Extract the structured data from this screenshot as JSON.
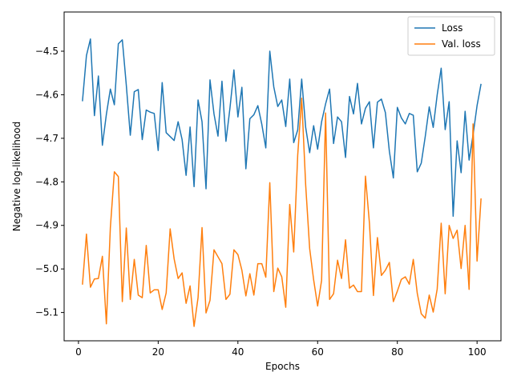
{
  "chart_data": {
    "type": "line",
    "title": "",
    "xlabel": "Epochs",
    "ylabel": "Negative log-likelihood",
    "xlim": [
      -3.6,
      106
    ],
    "ylim": [
      -5.165,
      -4.41
    ],
    "xticks": [
      0,
      20,
      40,
      60,
      80,
      100
    ],
    "yticks": [
      -5.1,
      -5.0,
      -4.9,
      -4.8,
      -4.7,
      -4.6,
      -4.5
    ],
    "xtick_labels": [
      "0",
      "20",
      "40",
      "60",
      "80",
      "100"
    ],
    "ytick_labels": [
      "−5.1",
      "−5.0",
      "−4.9",
      "−4.8",
      "−4.7",
      "−4.6",
      "−4.5"
    ],
    "grid": false,
    "legend_position": "top-right",
    "x": [
      1,
      2,
      3,
      4,
      5,
      6,
      7,
      8,
      9,
      10,
      11,
      12,
      13,
      14,
      15,
      16,
      17,
      18,
      19,
      20,
      21,
      22,
      23,
      24,
      25,
      26,
      27,
      28,
      29,
      30,
      31,
      32,
      33,
      34,
      35,
      36,
      37,
      38,
      39,
      40,
      41,
      42,
      43,
      44,
      45,
      46,
      47,
      48,
      49,
      50,
      51,
      52,
      53,
      54,
      55,
      56,
      57,
      58,
      59,
      60,
      61,
      62,
      63,
      64,
      65,
      66,
      67,
      68,
      69,
      70,
      71,
      72,
      73,
      74,
      75,
      76,
      77,
      78,
      79,
      80,
      81,
      82,
      83,
      84,
      85,
      86,
      87,
      88,
      89,
      90,
      91,
      92,
      93,
      94,
      95,
      96,
      97,
      98,
      99,
      100,
      101
    ],
    "series": [
      {
        "name": "Loss",
        "color": "#1f77b4",
        "values": [
          -4.615,
          -4.51,
          -4.472,
          -4.648,
          -4.557,
          -4.716,
          -4.645,
          -4.587,
          -4.623,
          -4.483,
          -4.474,
          -4.578,
          -4.693,
          -4.593,
          -4.588,
          -4.703,
          -4.635,
          -4.64,
          -4.643,
          -4.728,
          -4.572,
          -4.687,
          -4.696,
          -4.705,
          -4.662,
          -4.703,
          -4.785,
          -4.674,
          -4.811,
          -4.612,
          -4.662,
          -4.816,
          -4.566,
          -4.644,
          -4.695,
          -4.569,
          -4.707,
          -4.631,
          -4.543,
          -4.651,
          -4.583,
          -4.77,
          -4.655,
          -4.646,
          -4.625,
          -4.668,
          -4.722,
          -4.5,
          -4.582,
          -4.627,
          -4.612,
          -4.673,
          -4.564,
          -4.71,
          -4.681,
          -4.564,
          -4.675,
          -4.733,
          -4.671,
          -4.725,
          -4.662,
          -4.621,
          -4.587,
          -4.712,
          -4.651,
          -4.662,
          -4.744,
          -4.604,
          -4.644,
          -4.574,
          -4.667,
          -4.631,
          -4.616,
          -4.722,
          -4.617,
          -4.61,
          -4.641,
          -4.73,
          -4.791,
          -4.629,
          -4.653,
          -4.667,
          -4.643,
          -4.647,
          -4.777,
          -4.757,
          -4.696,
          -4.628,
          -4.675,
          -4.6,
          -4.539,
          -4.68,
          -4.616,
          -4.879,
          -4.706,
          -4.779,
          -4.638,
          -4.75,
          -4.692,
          -4.625,
          -4.575
        ]
      },
      {
        "name": "Val. loss",
        "color": "#ff7f0e",
        "values": [
          -5.036,
          -4.92,
          -5.042,
          -5.023,
          -5.022,
          -4.971,
          -5.126,
          -4.905,
          -4.777,
          -4.788,
          -5.075,
          -4.906,
          -5.07,
          -4.978,
          -5.06,
          -5.066,
          -4.946,
          -5.055,
          -5.048,
          -5.048,
          -5.093,
          -5.055,
          -4.908,
          -4.977,
          -5.022,
          -5.009,
          -5.079,
          -5.039,
          -5.132,
          -5.066,
          -4.905,
          -5.101,
          -5.072,
          -4.956,
          -4.972,
          -4.988,
          -5.07,
          -5.058,
          -4.956,
          -4.967,
          -5.003,
          -5.062,
          -5.011,
          -5.06,
          -4.988,
          -4.988,
          -5.019,
          -4.802,
          -5.052,
          -4.998,
          -5.018,
          -5.088,
          -4.852,
          -4.961,
          -4.739,
          -4.608,
          -4.807,
          -4.953,
          -5.025,
          -5.085,
          -5.026,
          -4.642,
          -5.07,
          -5.057,
          -4.98,
          -5.022,
          -4.933,
          -5.044,
          -5.037,
          -5.052,
          -5.052,
          -4.787,
          -4.895,
          -5.061,
          -4.928,
          -5.015,
          -5.003,
          -4.985,
          -5.075,
          -5.051,
          -5.024,
          -5.018,
          -5.035,
          -4.978,
          -5.056,
          -5.103,
          -5.113,
          -5.06,
          -5.099,
          -5.046,
          -4.895,
          -5.057,
          -4.9,
          -4.93,
          -4.911,
          -4.999,
          -4.9,
          -5.047,
          -4.667,
          -4.982,
          -4.838
        ]
      }
    ]
  }
}
